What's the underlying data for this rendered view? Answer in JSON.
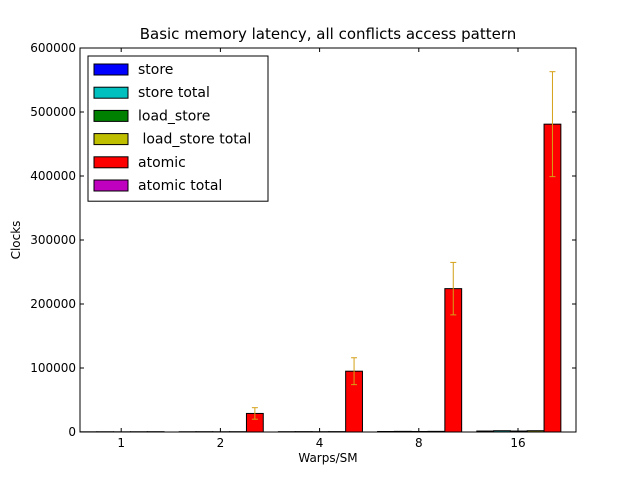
{
  "chart_data": {
    "type": "bar",
    "title": "Basic memory latency, all conflicts access pattern",
    "xlabel": "Warps/SM",
    "ylabel": "Clocks",
    "ylim": [
      0,
      600000
    ],
    "yticks": [
      0,
      100000,
      200000,
      300000,
      400000,
      500000,
      600000
    ],
    "categories": [
      "1",
      "2",
      "4",
      "8",
      "16"
    ],
    "grid": false,
    "legend_position": "top-left",
    "series": [
      {
        "name": "store",
        "color": "#0000ff",
        "values": [
          300,
          400,
          500,
          800,
          1500
        ],
        "errors": [
          0,
          0,
          0,
          0,
          0
        ]
      },
      {
        "name": "store total",
        "color": "#00bfbf",
        "values": [
          400,
          500,
          600,
          1000,
          2000
        ],
        "errors": [
          0,
          0,
          0,
          0,
          0
        ]
      },
      {
        "name": "load_store",
        "color": "#008000",
        "values": [
          300,
          400,
          500,
          800,
          1500
        ],
        "errors": [
          0,
          0,
          0,
          0,
          0
        ]
      },
      {
        "name": " load_store total",
        "color": "#bfbf00",
        "values": [
          400,
          500,
          600,
          1000,
          2000
        ],
        "errors": [
          0,
          0,
          0,
          0,
          0
        ]
      },
      {
        "name": "atomic",
        "color": "#ff0000",
        "values": [
          500,
          29000,
          95000,
          224000,
          481000
        ],
        "errors": [
          0,
          9000,
          21000,
          41000,
          82000
        ]
      },
      {
        "name": "atomic total",
        "color": "#bf00bf",
        "values": [
          0,
          0,
          0,
          0,
          0
        ],
        "errors": [
          0,
          0,
          0,
          0,
          0
        ]
      }
    ],
    "error_bar_color": "#d4a017"
  }
}
